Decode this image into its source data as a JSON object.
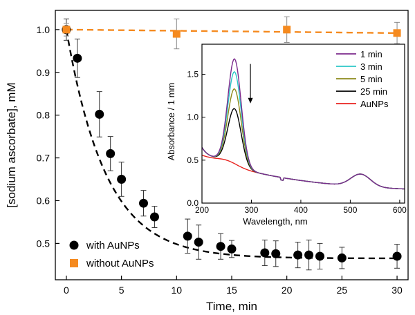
{
  "chart_data": [
    {
      "type": "scatter",
      "xlabel": "Time, min",
      "ylabel": "[sodium ascorbate], mM",
      "xlim": [
        -1,
        31
      ],
      "ylim": [
        0.415,
        1.045
      ],
      "xticks": [
        0,
        5,
        10,
        15,
        20,
        25,
        30
      ],
      "yticks": [
        0.5,
        0.6,
        0.7,
        0.8,
        0.9,
        1.0
      ],
      "ytick_labels": [
        "0.5",
        "0.6",
        "0.7",
        "0.8",
        "0.9",
        "1.0"
      ],
      "legend_position": "bottom-left",
      "series": [
        {
          "name": "with AuNPs",
          "color": "#000000",
          "marker": "circle",
          "points": [
            {
              "x": 0,
              "y": 1.0,
              "err": 0.025
            },
            {
              "x": 1,
              "y": 0.933,
              "err": 0.045
            },
            {
              "x": 3,
              "y": 0.802,
              "err": 0.053
            },
            {
              "x": 4,
              "y": 0.71,
              "err": 0.04
            },
            {
              "x": 5,
              "y": 0.65,
              "err": 0.04
            },
            {
              "x": 7,
              "y": 0.594,
              "err": 0.03
            },
            {
              "x": 8,
              "y": 0.562,
              "err": 0.025
            },
            {
              "x": 11,
              "y": 0.517,
              "err": 0.04
            },
            {
              "x": 12,
              "y": 0.503,
              "err": 0.04
            },
            {
              "x": 14,
              "y": 0.493,
              "err": 0.03
            },
            {
              "x": 15,
              "y": 0.487,
              "err": 0.02
            },
            {
              "x": 18,
              "y": 0.478,
              "err": 0.03
            },
            {
              "x": 19,
              "y": 0.476,
              "err": 0.03
            },
            {
              "x": 21,
              "y": 0.473,
              "err": 0.03
            },
            {
              "x": 22,
              "y": 0.473,
              "err": 0.035
            },
            {
              "x": 23,
              "y": 0.47,
              "err": 0.03
            },
            {
              "x": 25,
              "y": 0.466,
              "err": 0.025
            },
            {
              "x": 30,
              "y": 0.47,
              "err": 0.028
            }
          ]
        },
        {
          "name": "without AuNPs",
          "color": "#f58a1f",
          "marker": "square",
          "points": [
            {
              "x": 0,
              "y": 1.0,
              "err": 0.015
            },
            {
              "x": 10,
              "y": 0.99,
              "err": 0.035
            },
            {
              "x": 20,
              "y": 1.0,
              "err": 0.03
            },
            {
              "x": 30,
              "y": 0.992,
              "err": 0.025
            }
          ]
        }
      ],
      "fits": [
        {
          "series": "with AuNPs",
          "style": "dashed",
          "color": "#000000",
          "model": "exp_decay",
          "y0": 0.465,
          "A": 0.535,
          "tau": 3.6
        },
        {
          "series": "without AuNPs",
          "style": "dashed",
          "color": "#f58a1f",
          "model": "linear",
          "intercept": 1.0,
          "slope": -0.00027
        }
      ]
    },
    {
      "type": "line",
      "xlabel": "Wavelength, nm",
      "ylabel": "Absorbance / 1 mm",
      "xlim": [
        200,
        610
      ],
      "ylim": [
        0,
        1.85
      ],
      "xticks": [
        200,
        300,
        400,
        500,
        600
      ],
      "yticks": [
        0.0,
        0.5,
        1.0,
        1.5
      ],
      "ytick_labels": [
        "0.0",
        "0.5",
        "1.0",
        "1.5"
      ],
      "legend_position": "top-right",
      "annotations": [
        {
          "type": "arrow-down",
          "x": 298,
          "y_from": 1.62,
          "y_to": 1.16
        }
      ],
      "series": [
        {
          "name": "1 min",
          "color": "#7b2a8c",
          "peak": 1.7
        },
        {
          "name": "3 min",
          "color": "#2bc7c7",
          "peak": 1.55
        },
        {
          "name": "5 min",
          "color": "#8c8a1a",
          "peak": 1.35
        },
        {
          "name": "25 min",
          "color": "#000000",
          "peak": 1.12
        },
        {
          "name": "AuNPs",
          "color": "#e8231f",
          "peak": 0
        }
      ]
    }
  ]
}
